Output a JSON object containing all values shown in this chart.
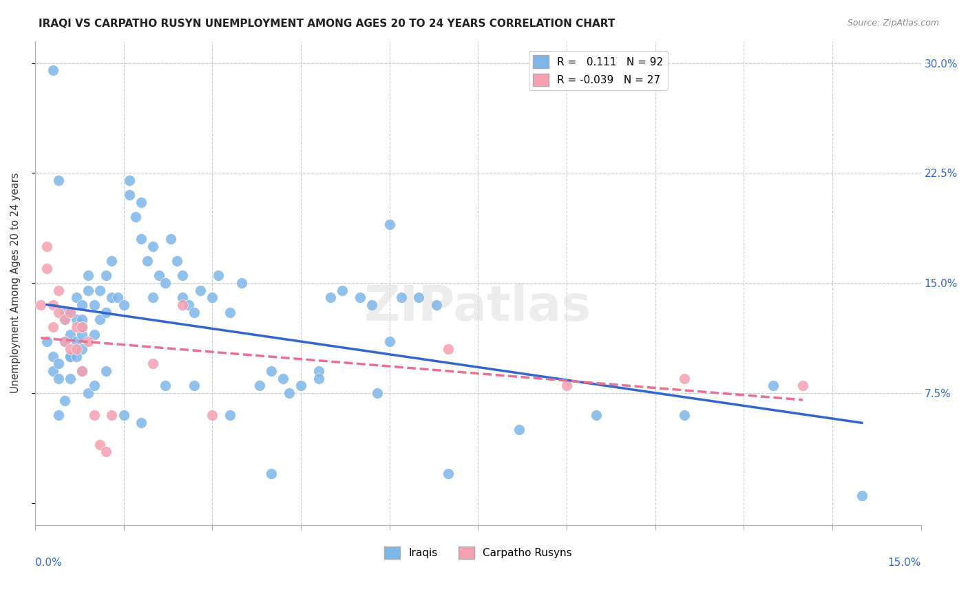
{
  "title": "IRAQI VS CARPATHO RUSYN UNEMPLOYMENT AMONG AGES 20 TO 24 YEARS CORRELATION CHART",
  "source": "Source: ZipAtlas.com",
  "ylabel": "Unemployment Among Ages 20 to 24 years",
  "yticks": [
    0.0,
    0.075,
    0.15,
    0.225,
    0.3
  ],
  "ytick_labels": [
    "",
    "7.5%",
    "15.0%",
    "22.5%",
    "30.0%"
  ],
  "xlim": [
    0.0,
    0.15
  ],
  "ylim": [
    -0.015,
    0.315
  ],
  "iraqis_R": 0.111,
  "iraqis_N": 92,
  "rusyn_R": -0.039,
  "rusyn_N": 27,
  "iraqi_color": "#7EB6E8",
  "rusyn_color": "#F4A0B0",
  "trend_iraqi_color": "#3366CC",
  "trend_rusyn_color": "#E87090",
  "background_color": "#FFFFFF",
  "watermark": "ZIPatlas",
  "iraqi_x": [
    0.002,
    0.003,
    0.003,
    0.004,
    0.004,
    0.005,
    0.005,
    0.005,
    0.006,
    0.006,
    0.006,
    0.007,
    0.007,
    0.007,
    0.008,
    0.008,
    0.008,
    0.008,
    0.009,
    0.009,
    0.01,
    0.01,
    0.011,
    0.011,
    0.012,
    0.012,
    0.013,
    0.013,
    0.014,
    0.015,
    0.016,
    0.016,
    0.017,
    0.018,
    0.018,
    0.019,
    0.02,
    0.021,
    0.022,
    0.023,
    0.024,
    0.025,
    0.025,
    0.026,
    0.027,
    0.028,
    0.03,
    0.031,
    0.033,
    0.035,
    0.038,
    0.04,
    0.042,
    0.043,
    0.045,
    0.048,
    0.05,
    0.052,
    0.055,
    0.057,
    0.06,
    0.062,
    0.065,
    0.068,
    0.003,
    0.004,
    0.005,
    0.006,
    0.007,
    0.008,
    0.009,
    0.01,
    0.012,
    0.015,
    0.018,
    0.022,
    0.027,
    0.033,
    0.04,
    0.048,
    0.058,
    0.07,
    0.082,
    0.095,
    0.11,
    0.125,
    0.14,
    0.004,
    0.006,
    0.008,
    0.02,
    0.06
  ],
  "iraqi_y": [
    0.11,
    0.09,
    0.1,
    0.085,
    0.095,
    0.11,
    0.125,
    0.13,
    0.1,
    0.115,
    0.13,
    0.11,
    0.125,
    0.14,
    0.105,
    0.115,
    0.125,
    0.135,
    0.145,
    0.155,
    0.115,
    0.135,
    0.125,
    0.145,
    0.13,
    0.155,
    0.14,
    0.165,
    0.14,
    0.135,
    0.21,
    0.22,
    0.195,
    0.205,
    0.18,
    0.165,
    0.175,
    0.155,
    0.15,
    0.18,
    0.165,
    0.14,
    0.155,
    0.135,
    0.13,
    0.145,
    0.14,
    0.155,
    0.13,
    0.15,
    0.08,
    0.09,
    0.085,
    0.075,
    0.08,
    0.09,
    0.14,
    0.145,
    0.14,
    0.135,
    0.19,
    0.14,
    0.14,
    0.135,
    0.295,
    0.06,
    0.07,
    0.1,
    0.1,
    0.09,
    0.075,
    0.08,
    0.09,
    0.06,
    0.055,
    0.08,
    0.08,
    0.06,
    0.02,
    0.085,
    0.075,
    0.02,
    0.05,
    0.06,
    0.06,
    0.08,
    0.005,
    0.22,
    0.085,
    0.12,
    0.14,
    0.11
  ],
  "rusyn_x": [
    0.001,
    0.002,
    0.002,
    0.003,
    0.003,
    0.004,
    0.004,
    0.005,
    0.005,
    0.006,
    0.006,
    0.007,
    0.007,
    0.008,
    0.008,
    0.009,
    0.01,
    0.011,
    0.012,
    0.013,
    0.02,
    0.025,
    0.03,
    0.07,
    0.09,
    0.11,
    0.13
  ],
  "rusyn_y": [
    0.135,
    0.16,
    0.175,
    0.12,
    0.135,
    0.13,
    0.145,
    0.11,
    0.125,
    0.105,
    0.13,
    0.105,
    0.12,
    0.09,
    0.12,
    0.11,
    0.06,
    0.04,
    0.035,
    0.06,
    0.095,
    0.135,
    0.06,
    0.105,
    0.08,
    0.085,
    0.08
  ]
}
